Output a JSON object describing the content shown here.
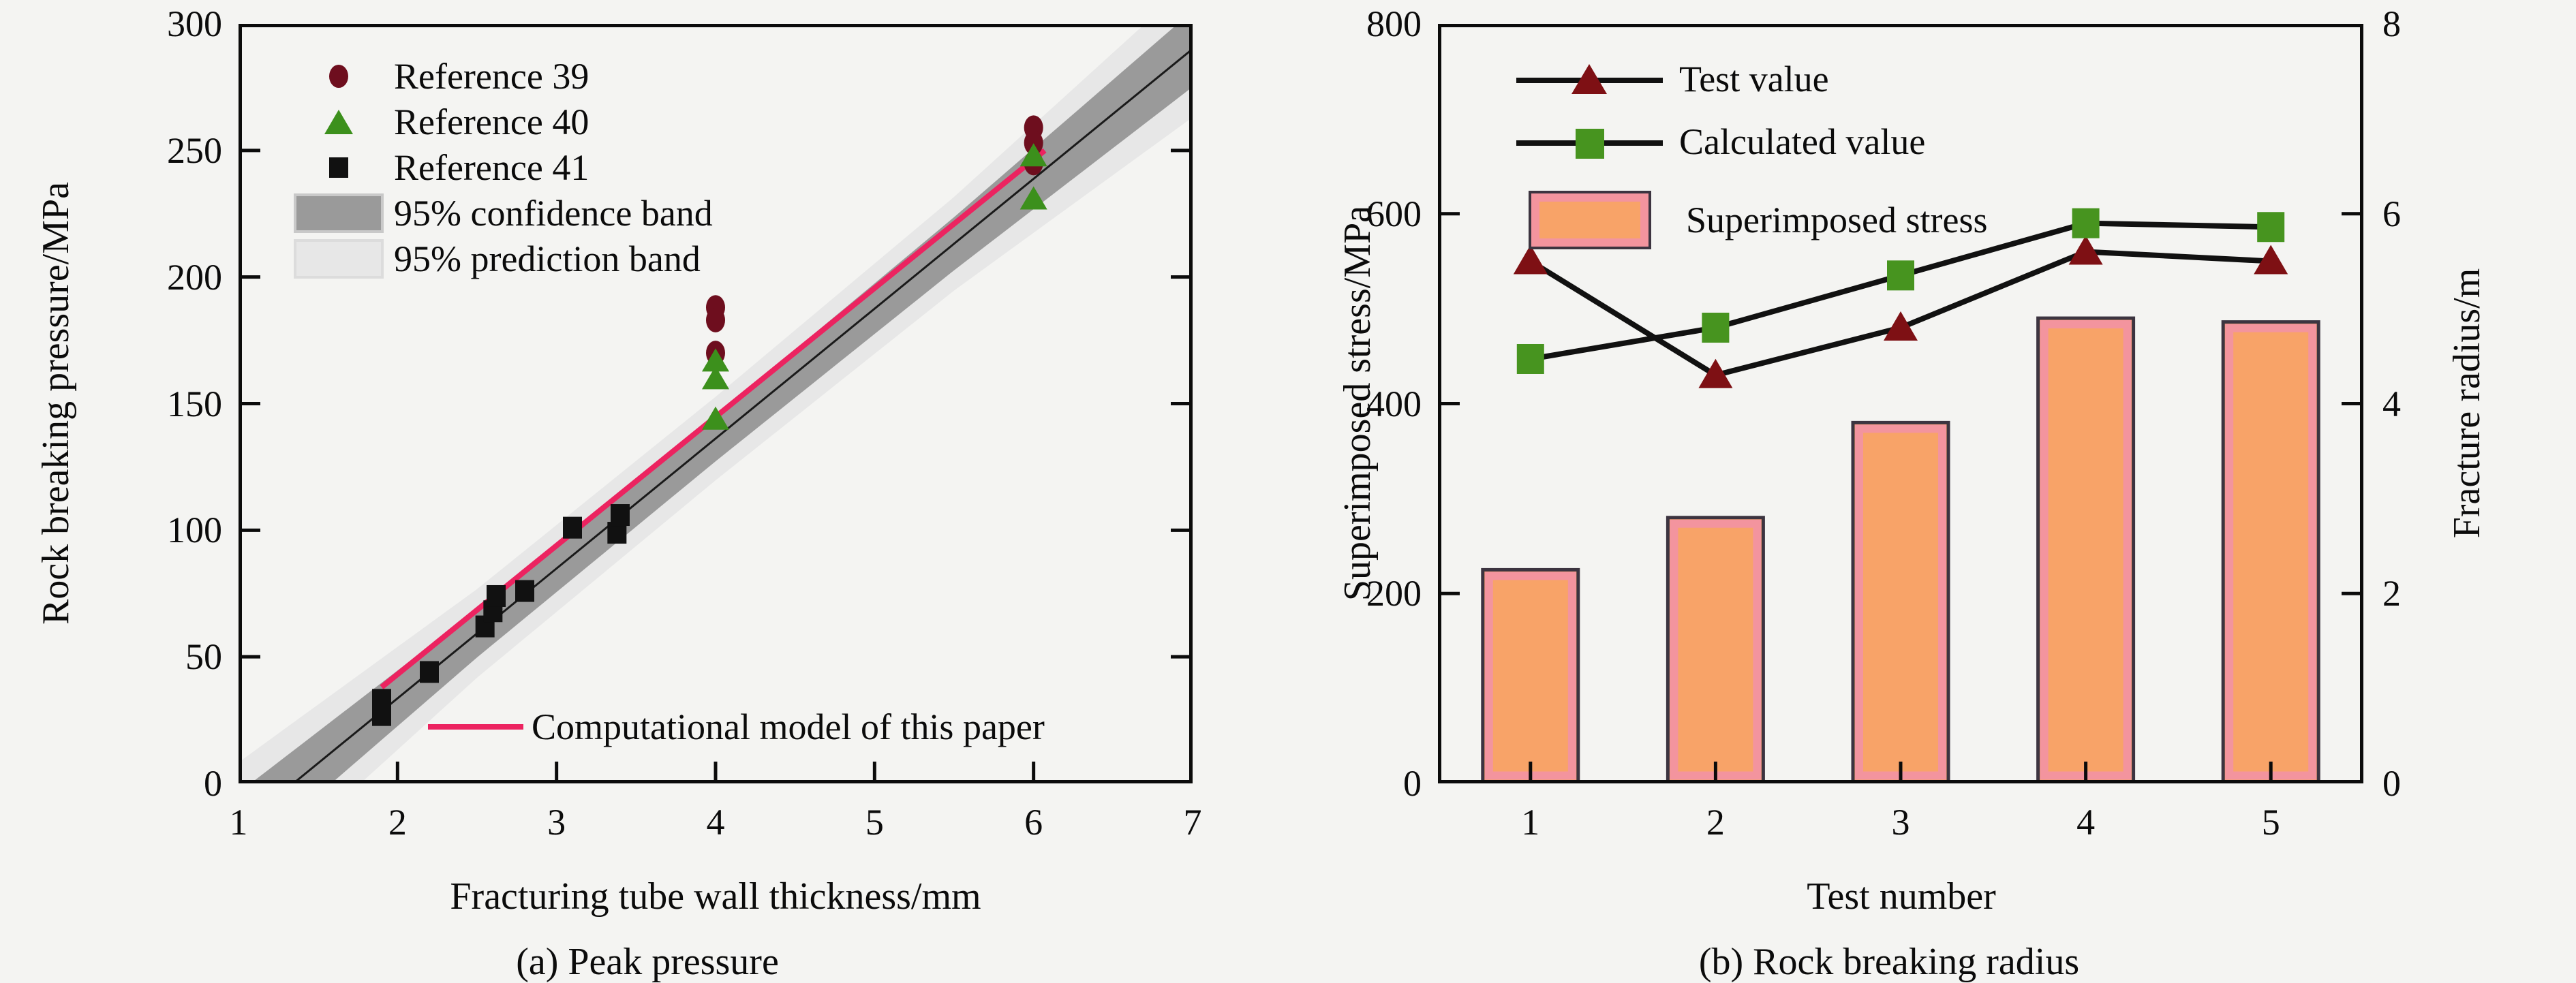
{
  "figure": {
    "background": "#f4f4f2",
    "axis_color": "#0b0b0b"
  },
  "chart_data": [
    {
      "id": "peak-pressure",
      "type": "scatter",
      "title": "(a) Peak pressure",
      "xlabel": "Fracturing tube wall thickness/mm",
      "ylabel": "Rock breaking pressure/MPa",
      "xlim": [
        1,
        7
      ],
      "ylim": [
        0,
        300
      ],
      "xticks": [
        1,
        2,
        3,
        4,
        5,
        6,
        7
      ],
      "yticks": [
        0,
        50,
        100,
        150,
        200,
        250,
        300
      ],
      "series": [
        {
          "name": "Reference 39",
          "marker": "circle",
          "color": "#6e0e1e",
          "points": [
            [
              4,
              188
            ],
            [
              4,
              183
            ],
            [
              4,
              170
            ],
            [
              6,
              259
            ],
            [
              6,
              253
            ],
            [
              6,
              245
            ]
          ]
        },
        {
          "name": "Reference 40",
          "marker": "triangle",
          "color": "#3c901c",
          "points": [
            [
              4,
              167
            ],
            [
              4,
              160
            ],
            [
              4,
              144
            ],
            [
              6,
              248
            ],
            [
              6,
              231
            ]
          ]
        },
        {
          "name": "Reference 41",
          "marker": "square",
          "color": "#111111",
          "points": [
            [
              1.9,
              27
            ],
            [
              1.9,
              33
            ],
            [
              2.2,
              44
            ],
            [
              2.55,
              62
            ],
            [
              2.6,
              68
            ],
            [
              2.62,
              74
            ],
            [
              2.8,
              76
            ],
            [
              3.1,
              101
            ],
            [
              3.38,
              99
            ],
            [
              3.4,
              106
            ]
          ]
        }
      ],
      "fit_line": {
        "slope": 51.3,
        "intercept": -69,
        "color": "#1a1a1a"
      },
      "confidence_band": {
        "label": "95% confidence band",
        "color": "#9a9a9a",
        "halfwidths": [
          [
            1,
            14
          ],
          [
            2.5,
            9.5
          ],
          [
            4,
            9
          ],
          [
            5.5,
            10.5
          ],
          [
            7,
            15
          ]
        ]
      },
      "prediction_band": {
        "label": "95% prediction band",
        "color": "#e7e7e7",
        "halfwidths": [
          [
            1,
            26
          ],
          [
            2.5,
            17.5
          ],
          [
            4,
            16.5
          ],
          [
            5.5,
            18.5
          ],
          [
            7,
            27
          ]
        ]
      },
      "model_line": {
        "label": "Computational model of this paper",
        "color": "#ec2360",
        "x": [
          1.9,
          6.07
        ],
        "y": [
          38,
          250
        ]
      }
    },
    {
      "id": "rock-breaking-radius",
      "type": "bar+line",
      "title": "(b) Rock breaking radius",
      "xlabel": "Test number",
      "ylabel_left": "Superimposed stress/MPa",
      "ylabel_right": "Fracture radius/m",
      "categories": [
        1,
        2,
        3,
        4,
        5
      ],
      "ylim_left": [
        0,
        800
      ],
      "yticks_left": [
        0,
        200,
        400,
        600,
        800
      ],
      "ylim_right": [
        0,
        8
      ],
      "yticks_right": [
        0,
        2,
        4,
        6,
        8
      ],
      "bars": {
        "name": "Superimposed stress",
        "axis": "left",
        "values": [
          225,
          280,
          380,
          490,
          486
        ],
        "fill": "#f8a368",
        "inner": "#f3949e",
        "border": "#3c3440"
      },
      "lines": [
        {
          "name": "Test value",
          "axis": "right",
          "marker": "triangle",
          "marker_color": "#7e1014",
          "line_color": "#111111",
          "values": [
            5.5,
            4.3,
            4.8,
            5.6,
            5.5
          ]
        },
        {
          "name": "Calculated value",
          "axis": "right",
          "marker": "square",
          "marker_color": "#47941f",
          "line_color": "#111111",
          "values": [
            4.47,
            4.8,
            5.35,
            5.9,
            5.86
          ]
        }
      ]
    }
  ]
}
